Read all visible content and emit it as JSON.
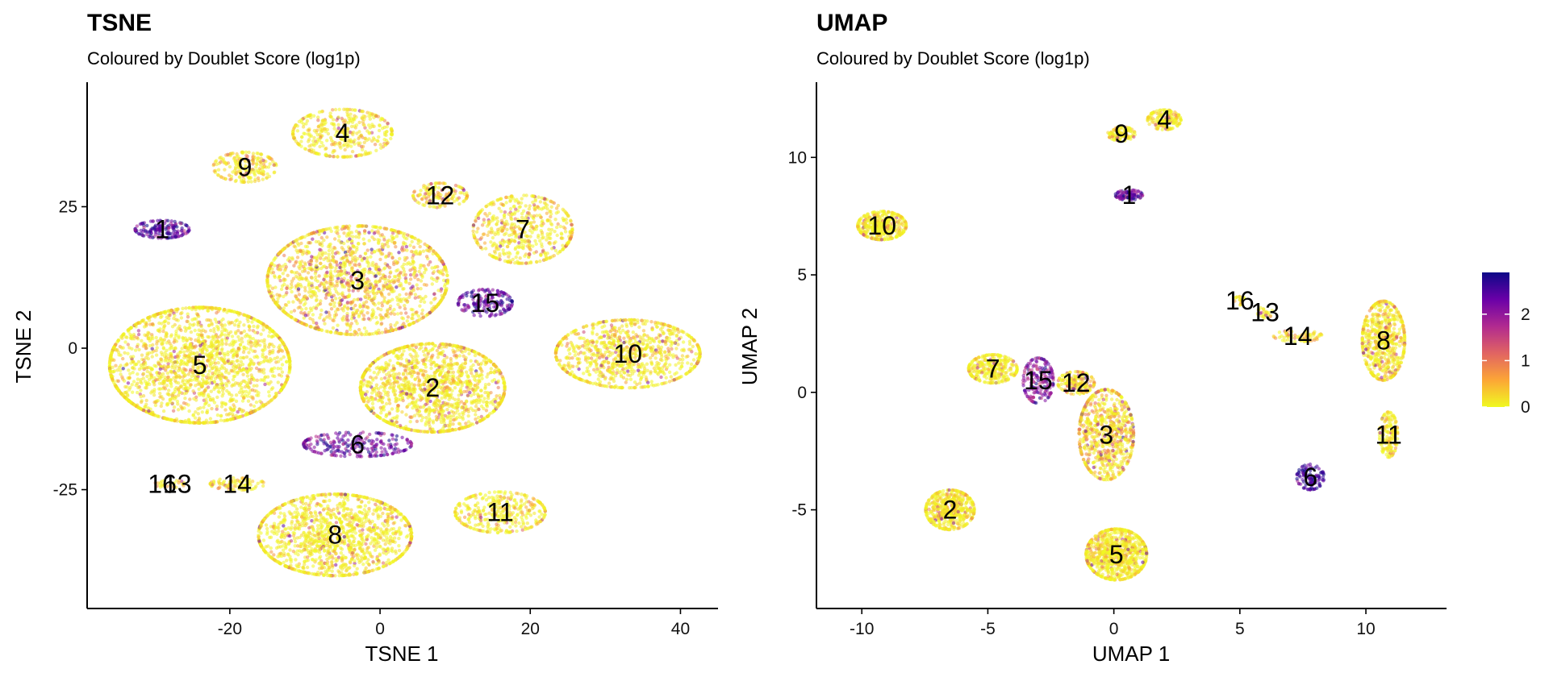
{
  "chart_data": [
    {
      "type": "scatter",
      "title": "TSNE",
      "subtitle": "Coloured by Doublet Score (log1p)",
      "xlabel": "TSNE 1",
      "ylabel": "TSNE 2",
      "xlim": [
        -39,
        45
      ],
      "ylim": [
        -46,
        47
      ],
      "xticks": [
        -20,
        0,
        20,
        40
      ],
      "yticks": [
        -25,
        0,
        25
      ],
      "xtick_labels": [
        "-20",
        "0",
        "20",
        "40"
      ],
      "ytick_labels": [
        "-25",
        "0",
        "25"
      ],
      "grid": false,
      "clusters": [
        {
          "label": "1",
          "x": -29,
          "y": 21,
          "sx": 3.0,
          "sy": 1.3,
          "n": 160,
          "score": 2.4
        },
        {
          "label": "2",
          "x": 7,
          "y": -7,
          "sx": 8.0,
          "sy": 6.5,
          "n": 1400,
          "score": 0.3
        },
        {
          "label": "3",
          "x": -3,
          "y": 12,
          "sx": 10.0,
          "sy": 8.0,
          "n": 1500,
          "score": 0.6
        },
        {
          "label": "4",
          "x": -5,
          "y": 38,
          "sx": 5.5,
          "sy": 3.5,
          "n": 380,
          "score": 0.2
        },
        {
          "label": "5",
          "x": -24,
          "y": -3,
          "sx": 10.0,
          "sy": 8.5,
          "n": 1900,
          "score": 0.2
        },
        {
          "label": "6",
          "x": -3,
          "y": -17,
          "sx": 6.0,
          "sy": 1.8,
          "n": 240,
          "score": 2.1
        },
        {
          "label": "7",
          "x": 19,
          "y": 21,
          "sx": 5.5,
          "sy": 5.0,
          "n": 520,
          "score": 0.3
        },
        {
          "label": "8",
          "x": -6,
          "y": -33,
          "sx": 8.5,
          "sy": 6.0,
          "n": 1300,
          "score": 0.2
        },
        {
          "label": "9",
          "x": -18,
          "y": 32,
          "sx": 3.5,
          "sy": 2.2,
          "n": 200,
          "score": 0.4
        },
        {
          "label": "10",
          "x": 33,
          "y": -1,
          "sx": 8.0,
          "sy": 5.0,
          "n": 900,
          "score": 0.3
        },
        {
          "label": "11",
          "x": 16,
          "y": -29,
          "sx": 5.0,
          "sy": 3.0,
          "n": 360,
          "score": 0.2
        },
        {
          "label": "12",
          "x": 8,
          "y": 27,
          "sx": 3.0,
          "sy": 1.8,
          "n": 140,
          "score": 0.8
        },
        {
          "label": "13",
          "x": -27,
          "y": -24,
          "sx": 0.8,
          "sy": 0.5,
          "n": 14,
          "score": 0.3
        },
        {
          "label": "14",
          "x": -19,
          "y": -24,
          "sx": 3.0,
          "sy": 0.9,
          "n": 90,
          "score": 0.4
        },
        {
          "label": "15",
          "x": 14,
          "y": 8,
          "sx": 3.0,
          "sy": 2.0,
          "n": 170,
          "score": 2.3
        },
        {
          "label": "16",
          "x": -29,
          "y": -24,
          "sx": 0.8,
          "sy": 0.5,
          "n": 12,
          "score": 0.3
        }
      ]
    },
    {
      "type": "scatter",
      "title": "UMAP",
      "subtitle": "Coloured by Doublet Score (log1p)",
      "xlabel": "UMAP 1",
      "ylabel": "UMAP 2",
      "xlim": [
        -11.8,
        13.2
      ],
      "ylim": [
        -9.2,
        13.2
      ],
      "xticks": [
        -10,
        -5,
        0,
        5,
        10
      ],
      "yticks": [
        -5,
        0,
        5,
        10
      ],
      "xtick_labels": [
        "-10",
        "-5",
        "0",
        "5",
        "10"
      ],
      "ytick_labels": [
        "-5",
        "0",
        "5",
        "10"
      ],
      "grid": false,
      "clusters": [
        {
          "label": "1",
          "x": 0.6,
          "y": 8.4,
          "sx": 0.45,
          "sy": 0.18,
          "n": 90,
          "score": 2.3
        },
        {
          "label": "2",
          "x": -6.5,
          "y": -5.0,
          "sx": 0.8,
          "sy": 0.7,
          "n": 500,
          "score": 0.3
        },
        {
          "label": "3",
          "x": -0.3,
          "y": -1.8,
          "sx": 0.9,
          "sy": 1.6,
          "n": 700,
          "score": 0.7
        },
        {
          "label": "4",
          "x": 2.0,
          "y": 11.6,
          "sx": 0.55,
          "sy": 0.35,
          "n": 160,
          "score": 0.2
        },
        {
          "label": "5",
          "x": 0.1,
          "y": -6.9,
          "sx": 1.0,
          "sy": 0.9,
          "n": 800,
          "score": 0.2
        },
        {
          "label": "6",
          "x": 7.8,
          "y": -3.6,
          "sx": 0.45,
          "sy": 0.45,
          "n": 110,
          "score": 2.5
        },
        {
          "label": "7",
          "x": -4.8,
          "y": 1.0,
          "sx": 0.8,
          "sy": 0.5,
          "n": 300,
          "score": 0.2
        },
        {
          "label": "8",
          "x": 10.7,
          "y": 2.2,
          "sx": 0.7,
          "sy": 1.4,
          "n": 600,
          "score": 0.3
        },
        {
          "label": "9",
          "x": 0.3,
          "y": 11.0,
          "sx": 0.45,
          "sy": 0.25,
          "n": 110,
          "score": 0.3
        },
        {
          "label": "10",
          "x": -9.2,
          "y": 7.1,
          "sx": 0.8,
          "sy": 0.5,
          "n": 380,
          "score": 0.2
        },
        {
          "label": "11",
          "x": 10.9,
          "y": -1.8,
          "sx": 0.3,
          "sy": 0.8,
          "n": 160,
          "score": 0.3
        },
        {
          "label": "12",
          "x": -1.5,
          "y": 0.4,
          "sx": 0.6,
          "sy": 0.4,
          "n": 160,
          "score": 0.6
        },
        {
          "label": "13",
          "x": 6.0,
          "y": 3.4,
          "sx": 0.25,
          "sy": 0.2,
          "n": 25,
          "score": 0.3
        },
        {
          "label": "14",
          "x": 7.3,
          "y": 2.4,
          "sx": 0.8,
          "sy": 0.2,
          "n": 70,
          "score": 0.4
        },
        {
          "label": "15",
          "x": -3.0,
          "y": 0.5,
          "sx": 0.5,
          "sy": 0.8,
          "n": 180,
          "score": 2.0
        },
        {
          "label": "16",
          "x": 5.0,
          "y": 3.9,
          "sx": 0.2,
          "sy": 0.15,
          "n": 18,
          "score": 0.3
        }
      ]
    }
  ],
  "legend": {
    "placement": "right",
    "range": [
      0,
      2.9
    ],
    "ticks": [
      0,
      1,
      2
    ],
    "tick_labels": [
      "0",
      "1",
      "2"
    ],
    "colors": [
      "#f0f921",
      "#fca636",
      "#e16462",
      "#b12a90",
      "#6a00a8",
      "#0d0887"
    ]
  }
}
